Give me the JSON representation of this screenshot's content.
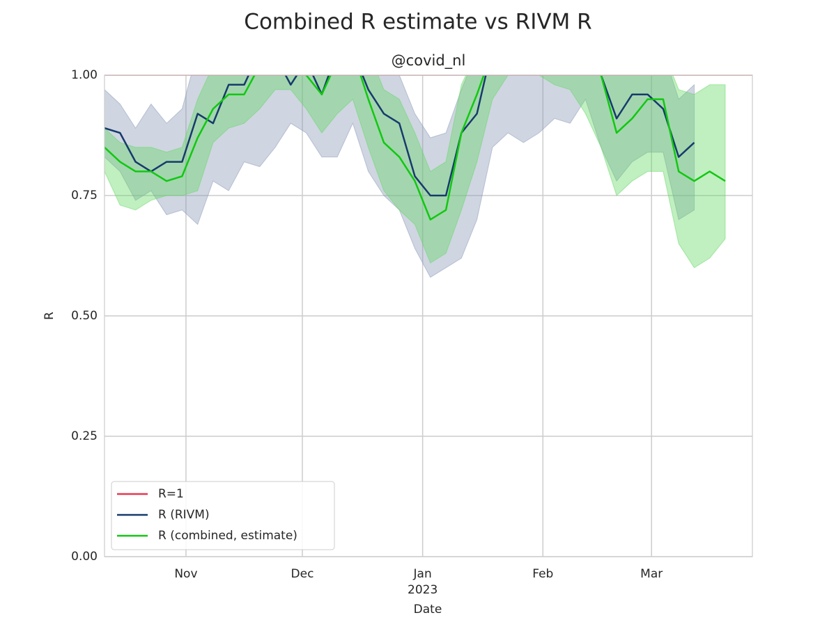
{
  "chart_data": {
    "type": "line_band",
    "title": "Combined R estimate vs RIVM R",
    "subtitle": "@covid_nl",
    "xlabel": "Date",
    "ylabel": "R",
    "x": [
      0,
      4,
      8,
      12,
      16,
      20,
      24,
      28,
      32,
      36,
      40,
      44,
      48,
      52,
      56,
      60,
      64,
      68,
      72,
      76,
      80,
      84,
      88,
      92,
      96,
      100,
      104,
      108,
      112,
      116,
      120,
      124,
      128,
      132,
      136,
      140,
      144,
      148,
      152,
      156,
      160
    ],
    "xlim": [
      0,
      167
    ],
    "xticks": [
      {
        "value": 21,
        "label": "Nov"
      },
      {
        "value": 51,
        "label": "Dec"
      },
      {
        "value": 82,
        "label": "Jan"
      },
      {
        "value": 113,
        "label": "Feb"
      },
      {
        "value": 141,
        "label": "Mar"
      }
    ],
    "x_year_label": "2023",
    "ylim": [
      0,
      1
    ],
    "yticks": [
      {
        "value": 0,
        "label": "0.00"
      },
      {
        "value": 0.25,
        "label": "0.25"
      },
      {
        "value": 0.5,
        "label": "0.50"
      },
      {
        "value": 0.75,
        "label": "0.75"
      },
      {
        "value": 1,
        "label": "1.00"
      }
    ],
    "grid": true,
    "legend": "lower left",
    "reference_lines": [
      {
        "name": "R=1",
        "color": "#e8364d",
        "value": 1
      }
    ],
    "series": [
      {
        "name": "R (RIVM)",
        "color": "#163a6c",
        "band_color": "#8797b5",
        "values": [
          0.89,
          0.88,
          0.82,
          0.8,
          0.82,
          0.82,
          0.92,
          0.9,
          0.98,
          0.98,
          1.05,
          1.04,
          0.98,
          1.03,
          0.96,
          1.05,
          1.05,
          0.97,
          0.92,
          0.9,
          0.79,
          0.75,
          0.75,
          0.88,
          0.92,
          1.06,
          1.1,
          1.12,
          1.1,
          1.08,
          1.08,
          1.05,
          1.0,
          0.91,
          0.96,
          0.96,
          0.93,
          0.83,
          0.86,
          null,
          null
        ],
        "lower": [
          0.83,
          0.8,
          0.74,
          0.76,
          0.71,
          0.72,
          0.69,
          0.78,
          0.76,
          0.82,
          0.81,
          0.85,
          0.9,
          0.88,
          0.83,
          0.83,
          0.9,
          0.8,
          0.75,
          0.72,
          0.64,
          0.58,
          0.6,
          0.62,
          0.7,
          0.85,
          0.88,
          0.86,
          0.88,
          0.91,
          0.9,
          0.95,
          0.85,
          0.78,
          0.82,
          0.84,
          0.84,
          0.7,
          0.72,
          null,
          null
        ],
        "upper": [
          0.97,
          0.94,
          0.89,
          0.94,
          0.9,
          0.93,
          1.05,
          1.08,
          1.1,
          1.12,
          1.15,
          1.15,
          1.1,
          1.1,
          1.08,
          1.15,
          1.15,
          1.1,
          1.05,
          1.0,
          0.92,
          0.87,
          0.88,
          0.97,
          1.05,
          1.15,
          1.2,
          1.2,
          1.2,
          1.2,
          1.2,
          1.15,
          1.12,
          1.05,
          1.08,
          1.08,
          1.05,
          0.95,
          0.98,
          null,
          null
        ]
      },
      {
        "name": "R (combined, estimate)",
        "color": "#11c811",
        "band_color": "#62d862",
        "values": [
          0.85,
          0.82,
          0.8,
          0.8,
          0.78,
          0.79,
          0.87,
          0.93,
          0.96,
          0.96,
          1.02,
          1.06,
          1.03,
          1.0,
          0.96,
          1.03,
          1.05,
          0.95,
          0.86,
          0.83,
          0.78,
          0.7,
          0.72,
          0.88,
          0.96,
          1.05,
          1.1,
          1.12,
          1.1,
          1.08,
          1.08,
          1.05,
          1.0,
          0.88,
          0.91,
          0.95,
          0.95,
          0.8,
          0.78,
          0.8,
          0.78
        ],
        "lower": [
          0.8,
          0.73,
          0.72,
          0.74,
          0.75,
          0.75,
          0.76,
          0.86,
          0.89,
          0.9,
          0.93,
          0.97,
          0.97,
          0.93,
          0.88,
          0.92,
          0.95,
          0.85,
          0.76,
          0.72,
          0.69,
          0.61,
          0.63,
          0.72,
          0.82,
          0.95,
          1.0,
          1.0,
          1.0,
          0.98,
          0.97,
          0.92,
          0.85,
          0.75,
          0.78,
          0.8,
          0.8,
          0.65,
          0.6,
          0.62,
          0.66
        ],
        "upper": [
          0.89,
          0.86,
          0.85,
          0.85,
          0.84,
          0.85,
          0.95,
          1.02,
          1.05,
          1.05,
          1.1,
          1.12,
          1.1,
          1.05,
          1.0,
          1.1,
          1.12,
          1.05,
          0.97,
          0.95,
          0.88,
          0.8,
          0.82,
          0.98,
          1.05,
          1.12,
          1.15,
          1.18,
          1.15,
          1.15,
          1.15,
          1.12,
          1.1,
          1.0,
          1.03,
          1.05,
          1.05,
          0.97,
          0.96,
          0.98,
          0.98
        ]
      }
    ]
  }
}
